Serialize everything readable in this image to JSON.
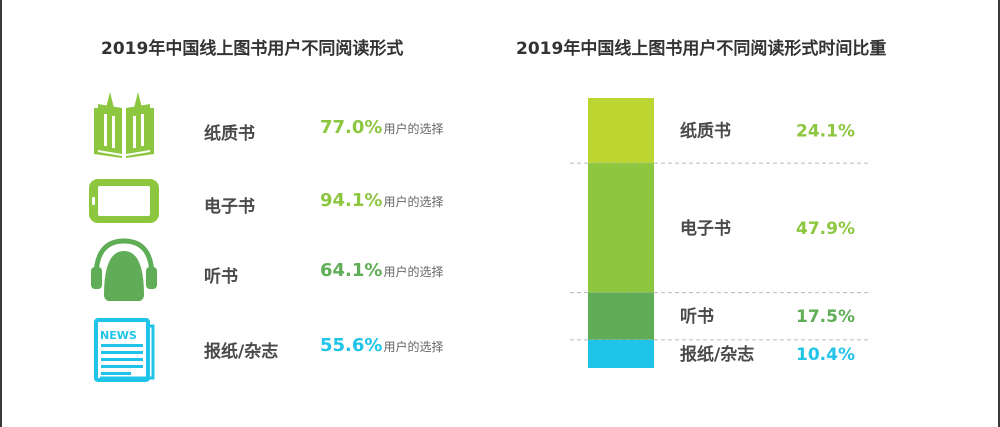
{
  "left_panel": {
    "title": "2019年中国线上图书用户不同阅读形式",
    "suffix": "用户的选择",
    "rows": [
      {
        "label": "纸质书",
        "value": "77.0%",
        "color": "#8dc63f",
        "icon": "book-icon"
      },
      {
        "label": "电子书",
        "value": "94.1%",
        "color": "#8dc63f",
        "icon": "tablet-icon"
      },
      {
        "label": "听书",
        "value": "64.1%",
        "color": "#5fad56",
        "icon": "headphones-icon"
      },
      {
        "label": "报纸/杂志",
        "value": "55.6%",
        "color": "#1fc4e8",
        "icon": "newspaper-icon"
      }
    ]
  },
  "right_panel": {
    "title": "2019年中国线上图书用户不同阅读形式时间比重"
  },
  "chart_data": [
    {
      "type": "bar",
      "title": "2019年中国线上图书用户不同阅读形式",
      "categories": [
        "纸质书",
        "电子书",
        "听书",
        "报纸/杂志"
      ],
      "values": [
        77.0,
        94.1,
        64.1,
        55.6
      ],
      "unit": "%"
    },
    {
      "type": "bar",
      "title": "2019年中国线上图书用户不同阅读形式时间比重",
      "stacked": true,
      "categories": [
        "纸质书",
        "电子书",
        "听书",
        "报纸/杂志"
      ],
      "values": [
        24.1,
        47.9,
        17.5,
        10.4
      ],
      "value_labels": [
        "24.1%",
        "47.9%",
        "17.5%",
        "10.4%"
      ],
      "colors": [
        "#bcd531",
        "#8dc63f",
        "#5fad56",
        "#1fc4e8"
      ],
      "unit": "%"
    }
  ]
}
